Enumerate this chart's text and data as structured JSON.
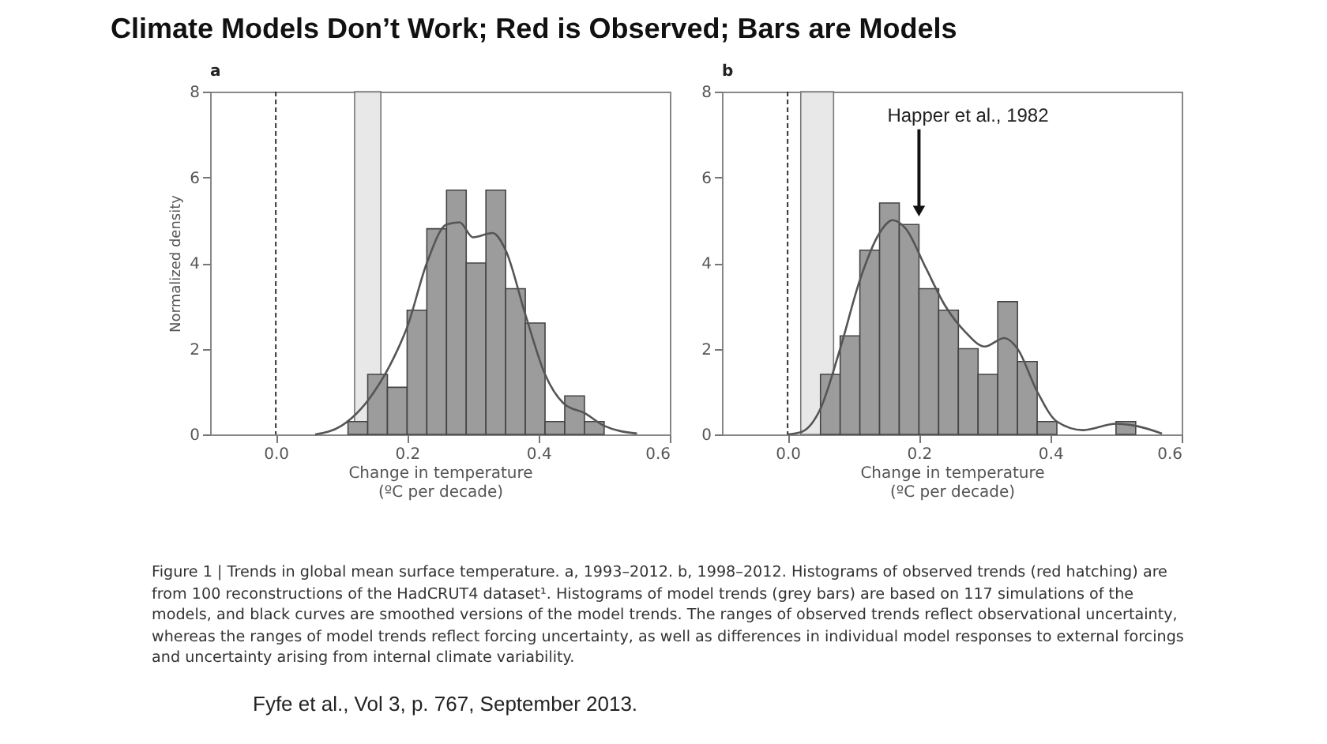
{
  "chart_data": [
    {
      "type": "histogram",
      "title": "Climate Models Don’t Work; Red is Observed; Bars are Models",
      "subtitle": "a",
      "xlabel": "Change in temperature\n(ºC per decade)",
      "ylabel": "Normalized density",
      "series": [
        {
          "type": "histogram",
          "color": "#9c9c9c",
          "bins": [
            0.11,
            0.14,
            0.17,
            0.2,
            0.23,
            0.26,
            0.29,
            0.32,
            0.35,
            0.38,
            0.41,
            0.44,
            0.47,
            0.5
          ],
          "values": [
            0.3,
            1.4,
            1.1,
            2.9,
            4.8,
            5.7,
            4.0,
            5.7,
            3.4,
            2.6,
            0.3,
            0.9,
            0.3
          ]
        },
        {
          "type": "line",
          "color": "#555555",
          "x": [
            0.06,
            0.1,
            0.13,
            0.15,
            0.18,
            0.2,
            0.23,
            0.26,
            0.28,
            0.3,
            0.33,
            0.35,
            0.38,
            0.41,
            0.44,
            0.47,
            0.5,
            0.55
          ],
          "values": [
            0,
            0.2,
            0.6,
            1.0,
            1.8,
            2.5,
            4.0,
            4.9,
            4.95,
            4.6,
            4.7,
            4.3,
            2.8,
            1.4,
            0.7,
            0.5,
            0.2,
            0.02
          ]
        }
      ],
      "bands": [
        {
          "axis": "x",
          "from": 0.12,
          "to": 0.16,
          "color": "#e0e0e0"
        }
      ],
      "ref_lines": [
        {
          "axis": "x",
          "value": 0,
          "line_style": "dashed",
          "color": "#333333"
        }
      ],
      "xlim": [
        -0.1,
        0.6
      ],
      "xticks": [
        {
          "value": 0,
          "label": "0.0"
        },
        {
          "value": 0.2,
          "label": "0.2"
        },
        {
          "value": 0.4,
          "label": "0.4"
        },
        {
          "value": 0.6,
          "label": "0.6"
        }
      ],
      "ylim": [
        0,
        8
      ],
      "yticks": [
        0,
        2,
        4,
        6,
        8
      ]
    },
    {
      "type": "histogram",
      "subtitle": "b",
      "xlabel": "Change in temperature\n(ºC per decade)",
      "series": [
        {
          "type": "histogram",
          "color": "#9c9c9c",
          "bins": [
            0.05,
            0.08,
            0.11,
            0.14,
            0.17,
            0.2,
            0.23,
            0.26,
            0.29,
            0.32,
            0.35,
            0.38,
            0.41,
            0.44,
            0.47,
            0.5,
            0.53
          ],
          "values": [
            1.4,
            2.3,
            4.3,
            5.4,
            4.9,
            3.4,
            2.9,
            2.0,
            1.4,
            3.1,
            1.7,
            0.3,
            null,
            null,
            null,
            0.3
          ]
        },
        {
          "type": "line",
          "color": "#555555",
          "x": [
            0.0,
            0.02,
            0.05,
            0.08,
            0.11,
            0.14,
            0.16,
            0.18,
            0.21,
            0.24,
            0.27,
            0.3,
            0.33,
            0.35,
            0.38,
            0.41,
            0.45,
            0.5,
            0.53,
            0.57
          ],
          "values": [
            0,
            0.05,
            0.6,
            2.0,
            3.6,
            4.7,
            5.0,
            4.8,
            3.9,
            3.0,
            2.4,
            2.05,
            2.25,
            2.0,
            1.0,
            0.3,
            0.1,
            0.25,
            0.2,
            0.02
          ]
        }
      ],
      "bands": [
        {
          "axis": "x",
          "from": 0.02,
          "to": 0.07,
          "color": "#e0e0e0"
        }
      ],
      "ref_lines": [
        {
          "axis": "x",
          "value": 0,
          "line_style": "dashed",
          "color": "#333333"
        }
      ],
      "annotations": [
        {
          "text": "Happer et al., 1982",
          "x": 0.2,
          "y": 5.1
        },
        "Figure 1 | Trends in global mean surface temperature. a, 1993–2012. b, 1998–2012. Histograms of observed trends (red hatching) are from 100 reconstructions of the HadCRUT4 dataset¹. Histograms of model trends (grey bars) are based on 117 simulations of the models, and black curves are smoothed versions of the model trends. The ranges of observed trends reflect observational uncertainty, whereas the ranges of model trends reflect forcing uncertainty, as well as differences in individual model responses to external forcings and uncertainty arising from internal climate variability.",
        "Fyfe et al., Vol 3, p. 767, September 2013."
      ],
      "xlim": [
        -0.1,
        0.6
      ],
      "xticks": [
        {
          "value": 0,
          "label": "0.0"
        },
        {
          "value": 0.2,
          "label": "0.2"
        },
        {
          "value": 0.4,
          "label": "0.4"
        },
        {
          "value": 0.6,
          "label": "0.6"
        }
      ],
      "ylim": [
        0,
        8
      ],
      "yticks": [
        0,
        2,
        4,
        6,
        8
      ]
    }
  ]
}
